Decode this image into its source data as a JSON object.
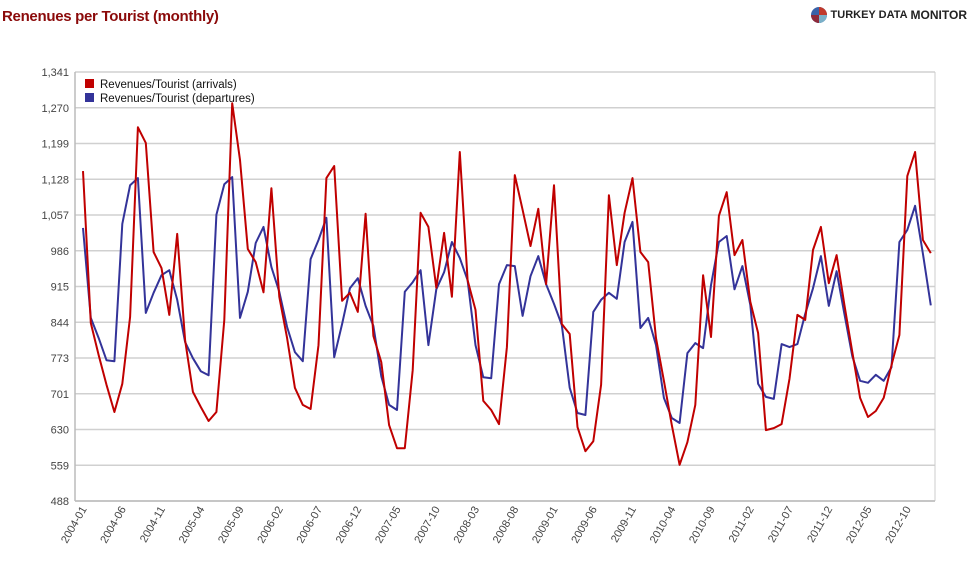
{
  "header": {
    "title": "Renenues per Tourist (monthly)",
    "logo_text_a": "TURKEY DATA",
    "logo_text_b": "MONITOR"
  },
  "colors": {
    "arrivals": "#c00000",
    "departures": "#333399",
    "title": "#8b0a0a",
    "grid": "#d0d0d0"
  },
  "chart_data": {
    "type": "line",
    "title": "Renenues per Tourist (monthly)",
    "xlabel": "",
    "ylabel": "",
    "x_start": "2004-01",
    "x_step_months": 1,
    "ylim": [
      488,
      1341
    ],
    "yticks": [
      "488",
      "559",
      "630",
      "701",
      "773",
      "844",
      "915",
      "986",
      "1,057",
      "1,128",
      "1,199",
      "1,270",
      "1,341"
    ],
    "xticks": [
      "2004-01",
      "2004-06",
      "2004-11",
      "2005-04",
      "2005-09",
      "2006-02",
      "2006-07",
      "2006-12",
      "2007-05",
      "2007-10",
      "2008-03",
      "2008-08",
      "2009-01",
      "2009-06",
      "2009-11",
      "2010-04",
      "2010-09",
      "2011-02",
      "2011-07",
      "2011-12",
      "2012-05",
      "2012-10"
    ],
    "xtick_every": 5,
    "grid": true,
    "legend_position": "top-left",
    "series": [
      {
        "name": "Revenues/Tourist (arrivals)",
        "color": "#c00000",
        "values": [
          1144,
          842,
          778,
          719,
          665,
          721,
          854,
          1231,
          1200,
          983,
          951,
          858,
          1019,
          808,
          705,
          675,
          647,
          665,
          848,
          1279,
          1166,
          989,
          963,
          903,
          1110,
          894,
          812,
          713,
          679,
          671,
          798,
          1130,
          1154,
          886,
          902,
          864,
          1059,
          816,
          764,
          639,
          593,
          593,
          748,
          1061,
          1033,
          912,
          1021,
          894,
          1182,
          927,
          868,
          687,
          669,
          641,
          794,
          1136,
          1067,
          995,
          1069,
          919,
          1116,
          840,
          820,
          635,
          587,
          607,
          719,
          1096,
          957,
          1061,
          1130,
          983,
          963,
          812,
          727,
          639,
          560,
          605,
          679,
          937,
          814,
          1055,
          1102,
          977,
          1007,
          884,
          822,
          629,
          633,
          641,
          731,
          858,
          848,
          987,
          1033,
          921,
          977,
          878,
          784,
          693,
          655,
          667,
          693,
          758,
          818,
          1134,
          1182,
          1007,
          981
        ]
      },
      {
        "name": "Revenues/Tourist (departures)",
        "color": "#333399",
        "values": [
          1031,
          852,
          812,
          768,
          766,
          1039,
          1116,
          1130,
          862,
          902,
          937,
          947,
          888,
          804,
          772,
          746,
          738,
          1057,
          1118,
          1132,
          852,
          904,
          1001,
          1033,
          953,
          904,
          834,
          784,
          766,
          969,
          1007,
          1051,
          774,
          840,
          911,
          931,
          876,
          836,
          736,
          679,
          669,
          904,
          923,
          947,
          798,
          909,
          943,
          1003,
          971,
          927,
          798,
          734,
          732,
          919,
          957,
          955,
          856,
          935,
          975,
          919,
          880,
          838,
          713,
          663,
          659,
          864,
          888,
          902,
          890,
          1003,
          1043,
          832,
          852,
          798,
          693,
          653,
          643,
          782,
          802,
          792,
          917,
          1003,
          1015,
          909,
          955,
          878,
          721,
          695,
          691,
          800,
          794,
          800,
          860,
          911,
          975,
          876,
          945,
          860,
          776,
          727,
          723,
          739,
          727,
          754,
          1003,
          1027,
          1075,
          980,
          877
        ]
      }
    ]
  }
}
